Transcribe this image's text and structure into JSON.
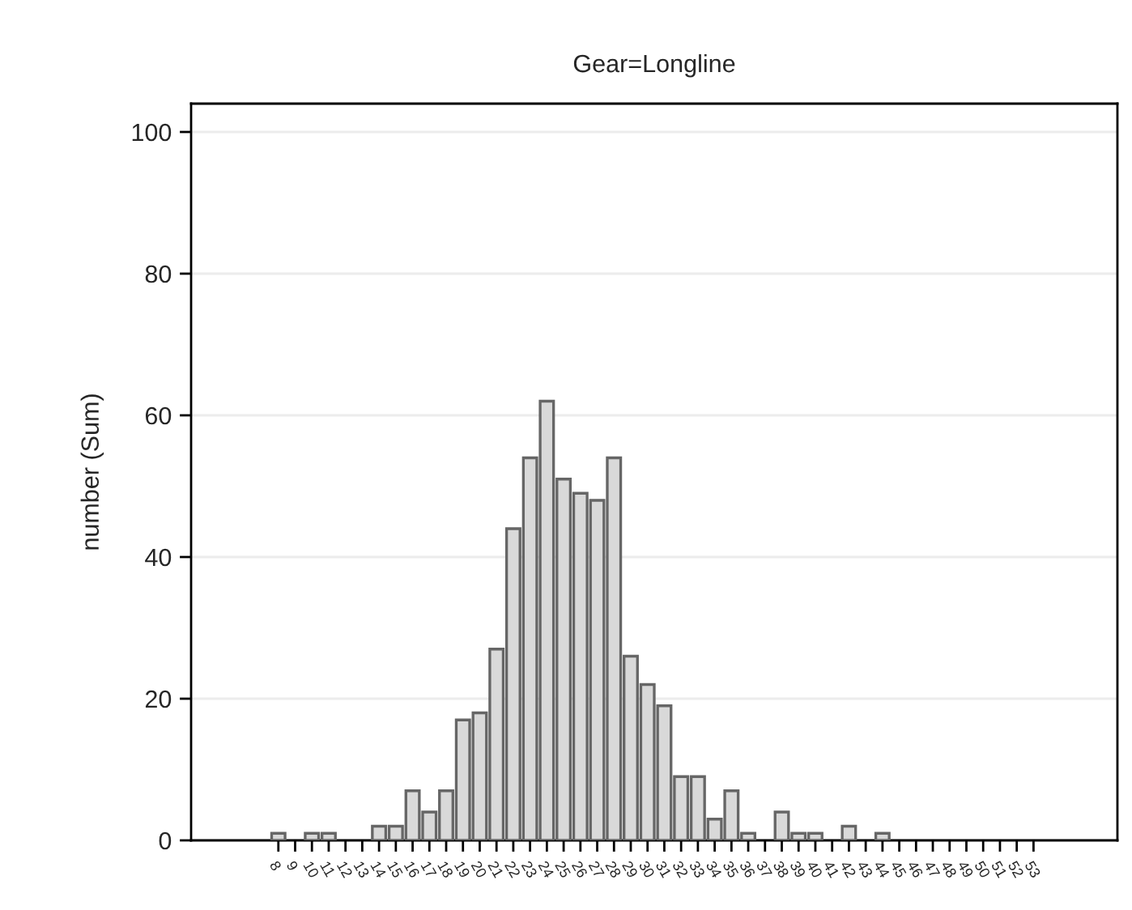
{
  "chart_data": {
    "type": "bar",
    "title": "Gear=Longline",
    "ylabel": "number (Sum)",
    "categories": [
      "8",
      "9",
      "10",
      "11",
      "12",
      "13",
      "14",
      "15",
      "16",
      "17",
      "18",
      "19",
      "20",
      "21",
      "22",
      "23",
      "24",
      "25",
      "26",
      "27",
      "28",
      "29",
      "30",
      "31",
      "32",
      "33",
      "34",
      "35",
      "36",
      "37",
      "38",
      "39",
      "40",
      "41",
      "42",
      "43",
      "44",
      "45",
      "46",
      "47",
      "48",
      "49",
      "50",
      "51",
      "52",
      "53"
    ],
    "values": [
      1,
      0,
      1,
      1,
      0,
      0,
      2,
      2,
      7,
      4,
      7,
      17,
      18,
      27,
      44,
      54,
      62,
      51,
      49,
      48,
      54,
      26,
      22,
      19,
      9,
      9,
      3,
      7,
      1,
      0,
      4,
      1,
      1,
      0,
      2,
      0,
      1,
      0,
      0,
      0,
      0,
      0,
      0,
      0,
      0,
      0
    ],
    "color": "#d9d9d9",
    "ylim": [
      0,
      104
    ],
    "yticks": [
      0,
      20,
      40,
      60,
      80,
      100
    ],
    "grid": "y"
  }
}
